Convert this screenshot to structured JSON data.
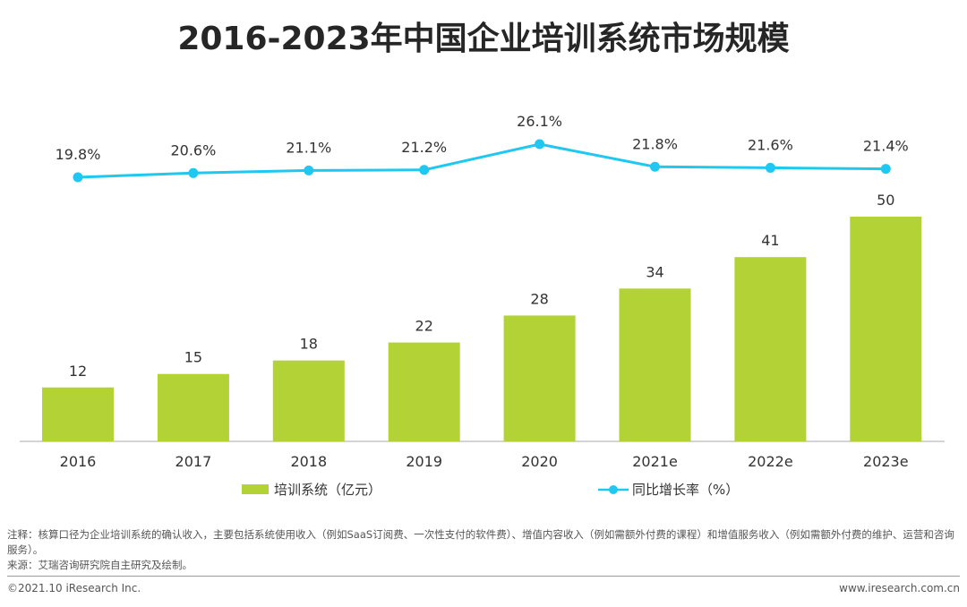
{
  "chart_data": {
    "type": "bar+line",
    "title": "2016-2023年中国企业培训系统市场规模",
    "categories": [
      "2016",
      "2017",
      "2018",
      "2019",
      "2020",
      "2021e",
      "2022e",
      "2023e"
    ],
    "series": [
      {
        "name": "培训系统（亿元）",
        "type": "bar",
        "values": [
          12,
          15,
          18,
          22,
          28,
          34,
          41,
          50
        ],
        "labels": [
          "12",
          "15",
          "18",
          "22",
          "28",
          "34",
          "41",
          "50"
        ],
        "color": "#b2d235"
      },
      {
        "name": "同比增长率（%）",
        "type": "line",
        "values": [
          19.8,
          20.6,
          21.1,
          21.2,
          26.1,
          21.8,
          21.6,
          21.4
        ],
        "labels": [
          "19.8%",
          "20.6%",
          "21.1%",
          "21.2%",
          "26.1%",
          "21.8%",
          "21.6%",
          "21.4%"
        ],
        "color": "#1ec8f0"
      }
    ],
    "grid": false,
    "legend": "bottom"
  },
  "notes": {
    "note": "注释：核算口径为企业培训系统的确认收入，主要包括系统使用收入（例如SaaS订阅费、一次性支付的软件费）、增值内容收入（例如需额外付费的课程）和增值服务收入（例如需额外付费的维护、运营和咨询服务）。",
    "source": "来源：艾瑞咨询研究院自主研究及绘制。"
  },
  "footer": {
    "copyright": "©2021.10 iResearch Inc.",
    "website": "www.iresearch.com.cn"
  }
}
